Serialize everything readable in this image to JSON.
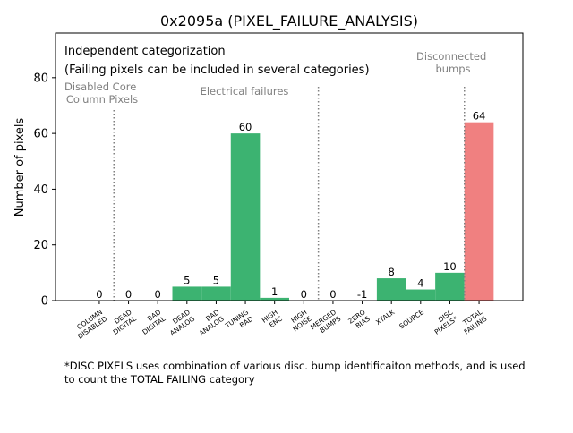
{
  "chart_data": {
    "type": "bar",
    "title": "0x2095a (PIXEL_FAILURE_ANALYSIS)",
    "ylabel": "Number of pixels",
    "xlabel": "",
    "ylim": [
      0,
      96
    ],
    "yticks": [
      0,
      20,
      40,
      60,
      80
    ],
    "grid": false,
    "categories": [
      [
        "COLUMN",
        "DISABLED"
      ],
      [
        "DEAD",
        "DIGITAL"
      ],
      [
        "BAD",
        "DIGITAL"
      ],
      [
        "DEAD",
        "ANALOG"
      ],
      [
        "BAD",
        "ANALOG"
      ],
      [
        "TUNING",
        "BAD"
      ],
      [
        "HIGH",
        "ENC"
      ],
      [
        "HIGH",
        "NOISE"
      ],
      [
        "MERGED",
        "BUMPS"
      ],
      [
        "ZERO",
        "BIAS"
      ],
      [
        "XTALK"
      ],
      [
        "SOURCE"
      ],
      [
        "DISC",
        "PIXELS*"
      ],
      [
        "TOTAL",
        "FAILING"
      ]
    ],
    "values": [
      0,
      0,
      0,
      5,
      5,
      60,
      1,
      0,
      0,
      -1,
      8,
      4,
      10,
      64
    ],
    "data_labels": [
      "0",
      "0",
      "0",
      "5",
      "5",
      "60",
      "1",
      "0",
      "0",
      "-1",
      "8",
      "4",
      "10",
      "64"
    ],
    "colors": [
      "#3cb371",
      "#3cb371",
      "#3cb371",
      "#3cb371",
      "#3cb371",
      "#3cb371",
      "#3cb371",
      "#3cb371",
      "#3cb371",
      "#3cb371",
      "#3cb371",
      "#3cb371",
      "#3cb371",
      "#f08080"
    ],
    "group_labels": [
      {
        "lines": [
          "Disabled Core",
          "Column Pixels"
        ]
      },
      {
        "lines": [
          "Electrical failures"
        ]
      },
      {
        "lines": [
          "Disconnected",
          "bumps"
        ]
      }
    ],
    "annotation_lines": [
      "Independent categorization",
      "(Failing pixels can be included in several categories)"
    ],
    "footnote_lines": [
      "*DISC PIXELS uses combination of various disc. bump identificaiton methods, and is used",
      "to count the TOTAL FAILING category"
    ],
    "text_color": "#000000",
    "group_label_color": "#808080",
    "divider_color": "#808080"
  }
}
